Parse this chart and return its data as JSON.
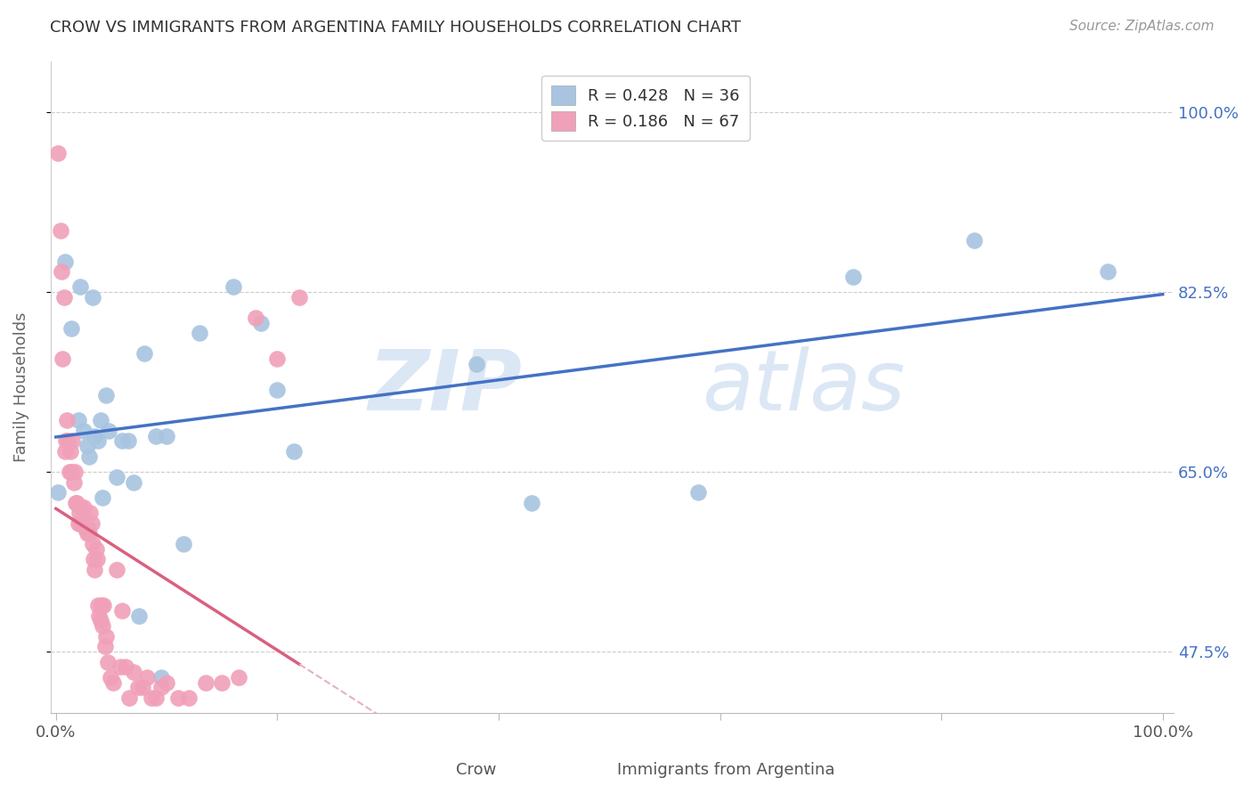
{
  "title": "CROW VS IMMIGRANTS FROM ARGENTINA FAMILY HOUSEHOLDS CORRELATION CHART",
  "source": "Source: ZipAtlas.com",
  "ylabel": "Family Households",
  "xlabel_crow": "Crow",
  "xlabel_argentina": "Immigrants from Argentina",
  "crow_R": 0.428,
  "crow_N": 36,
  "argentina_R": 0.186,
  "argentina_N": 67,
  "crow_color": "#a8c4e0",
  "argentina_color": "#f0a0b8",
  "crow_line_color": "#4472c4",
  "argentina_line_color": "#d96080",
  "argentina_dashed_color": "#e8b0c0",
  "watermark_zip": "ZIP",
  "watermark_atlas": "atlas",
  "crow_points_x": [
    0.002,
    0.008,
    0.014,
    0.02,
    0.022,
    0.025,
    0.028,
    0.03,
    0.033,
    0.035,
    0.038,
    0.04,
    0.042,
    0.045,
    0.048,
    0.055,
    0.06,
    0.065,
    0.07,
    0.075,
    0.08,
    0.09,
    0.095,
    0.1,
    0.115,
    0.13,
    0.16,
    0.185,
    0.2,
    0.215,
    0.38,
    0.43,
    0.58,
    0.72,
    0.83,
    0.95
  ],
  "crow_points_y": [
    0.63,
    0.855,
    0.79,
    0.7,
    0.83,
    0.69,
    0.675,
    0.665,
    0.82,
    0.685,
    0.68,
    0.7,
    0.625,
    0.725,
    0.69,
    0.645,
    0.68,
    0.68,
    0.64,
    0.51,
    0.765,
    0.685,
    0.45,
    0.685,
    0.58,
    0.785,
    0.83,
    0.795,
    0.73,
    0.67,
    0.755,
    0.62,
    0.63,
    0.84,
    0.875,
    0.845
  ],
  "argentina_points_x": [
    0.002,
    0.004,
    0.005,
    0.006,
    0.007,
    0.008,
    0.009,
    0.01,
    0.011,
    0.012,
    0.013,
    0.014,
    0.015,
    0.016,
    0.017,
    0.018,
    0.019,
    0.02,
    0.021,
    0.022,
    0.023,
    0.024,
    0.025,
    0.026,
    0.027,
    0.028,
    0.029,
    0.03,
    0.031,
    0.032,
    0.033,
    0.034,
    0.035,
    0.036,
    0.037,
    0.038,
    0.039,
    0.04,
    0.041,
    0.042,
    0.043,
    0.044,
    0.045,
    0.047,
    0.049,
    0.052,
    0.055,
    0.058,
    0.06,
    0.063,
    0.066,
    0.07,
    0.074,
    0.078,
    0.082,
    0.086,
    0.09,
    0.095,
    0.1,
    0.11,
    0.12,
    0.135,
    0.15,
    0.165,
    0.18,
    0.2,
    0.22
  ],
  "argentina_points_y": [
    0.96,
    0.885,
    0.845,
    0.76,
    0.82,
    0.67,
    0.68,
    0.7,
    0.68,
    0.65,
    0.67,
    0.65,
    0.68,
    0.64,
    0.65,
    0.62,
    0.62,
    0.6,
    0.61,
    0.6,
    0.615,
    0.6,
    0.615,
    0.605,
    0.595,
    0.59,
    0.595,
    0.59,
    0.61,
    0.6,
    0.58,
    0.565,
    0.555,
    0.575,
    0.565,
    0.52,
    0.51,
    0.505,
    0.52,
    0.5,
    0.52,
    0.48,
    0.49,
    0.465,
    0.45,
    0.445,
    0.555,
    0.46,
    0.515,
    0.46,
    0.43,
    0.455,
    0.44,
    0.44,
    0.45,
    0.43,
    0.43,
    0.44,
    0.445,
    0.43,
    0.43,
    0.445,
    0.445,
    0.45,
    0.8,
    0.76,
    0.82
  ]
}
